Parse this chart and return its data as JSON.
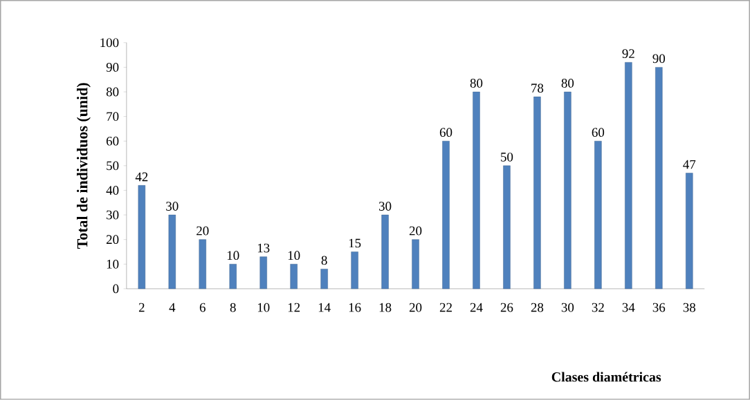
{
  "chart_data": {
    "type": "bar",
    "xlabel": "Clases diamétricas",
    "ylabel": "Total de individuos (unid)",
    "categories": [
      "2",
      "4",
      "6",
      "8",
      "10",
      "12",
      "14",
      "16",
      "18",
      "20",
      "22",
      "24",
      "26",
      "28",
      "30",
      "32",
      "34",
      "36",
      "38"
    ],
    "values": [
      42,
      30,
      20,
      10,
      13,
      10,
      8,
      15,
      30,
      20,
      60,
      80,
      50,
      78,
      80,
      60,
      92,
      90,
      47
    ],
    "color": "#4f81bd",
    "ylim": [
      0,
      100
    ],
    "yticks": [
      0,
      10,
      20,
      30,
      40,
      50,
      60,
      70,
      80,
      90,
      100
    ],
    "data_labels": true,
    "grid": false
  }
}
